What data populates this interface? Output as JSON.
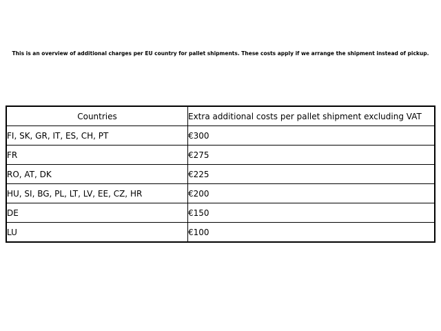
{
  "intro": "This is an overview of additional charges per EU country for pallet shipments. These costs apply if we arrange the shipment instead of pickup.",
  "table": {
    "headers": {
      "countries": "Countries",
      "costs": "Extra additional costs per pallet shipment excluding VAT"
    },
    "rows": [
      {
        "countries": "FI, SK, GR, IT, ES, CH, PT",
        "cost": "€300"
      },
      {
        "countries": "FR",
        "cost": "€275"
      },
      {
        "countries": "RO, AT, DK",
        "cost": "€225"
      },
      {
        "countries": "HU, SI, BG, PL, LT, LV, EE, CZ, HR",
        "cost": "€200"
      },
      {
        "countries": "DE",
        "cost": "€150"
      },
      {
        "countries": "LU",
        "cost": "€100"
      }
    ]
  },
  "colors": {
    "background": "#ffffff",
    "text": "#000000",
    "border": "#000000"
  }
}
